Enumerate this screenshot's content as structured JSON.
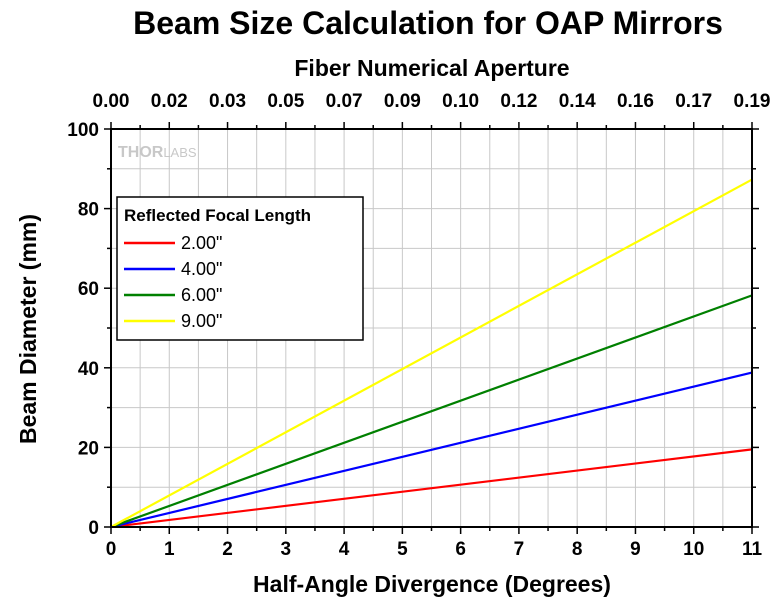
{
  "chart_data": {
    "type": "line",
    "title": "Beam Size Calculation for OAP Mirrors",
    "xlabel": "Half-Angle Divergence (Degrees)",
    "ylabel": "Beam Diameter (mm)",
    "x2label": "Fiber Numerical Aperture",
    "xlim": [
      0,
      11
    ],
    "ylim": [
      0,
      100
    ],
    "x_ticks": [
      "0",
      "1",
      "2",
      "3",
      "4",
      "5",
      "6",
      "7",
      "8",
      "9",
      "10",
      "11"
    ],
    "y_ticks": [
      "0",
      "20",
      "40",
      "60",
      "80",
      "100"
    ],
    "x2_ticks": [
      "0.00",
      "0.02",
      "0.03",
      "0.05",
      "0.07",
      "0.09",
      "0.10",
      "0.12",
      "0.14",
      "0.16",
      "0.17",
      "0.19"
    ],
    "grid": true,
    "legend": {
      "title": "Reflected Focal Length",
      "position": "upper-left"
    },
    "series": [
      {
        "name": "2.00\"",
        "color": "#ff0000",
        "x": [
          0,
          11
        ],
        "y": [
          0,
          19.5
        ]
      },
      {
        "name": "4.00\"",
        "color": "#0000ff",
        "x": [
          0,
          11
        ],
        "y": [
          0,
          38.8
        ]
      },
      {
        "name": "6.00\"",
        "color": "#008000",
        "x": [
          0,
          11
        ],
        "y": [
          0,
          58.2
        ]
      },
      {
        "name": "9.00\"",
        "color": "#ffff00",
        "x": [
          0,
          11
        ],
        "y": [
          0,
          87.3
        ]
      }
    ]
  },
  "watermark": {
    "thor": "THOR",
    "labs": "LABS"
  }
}
